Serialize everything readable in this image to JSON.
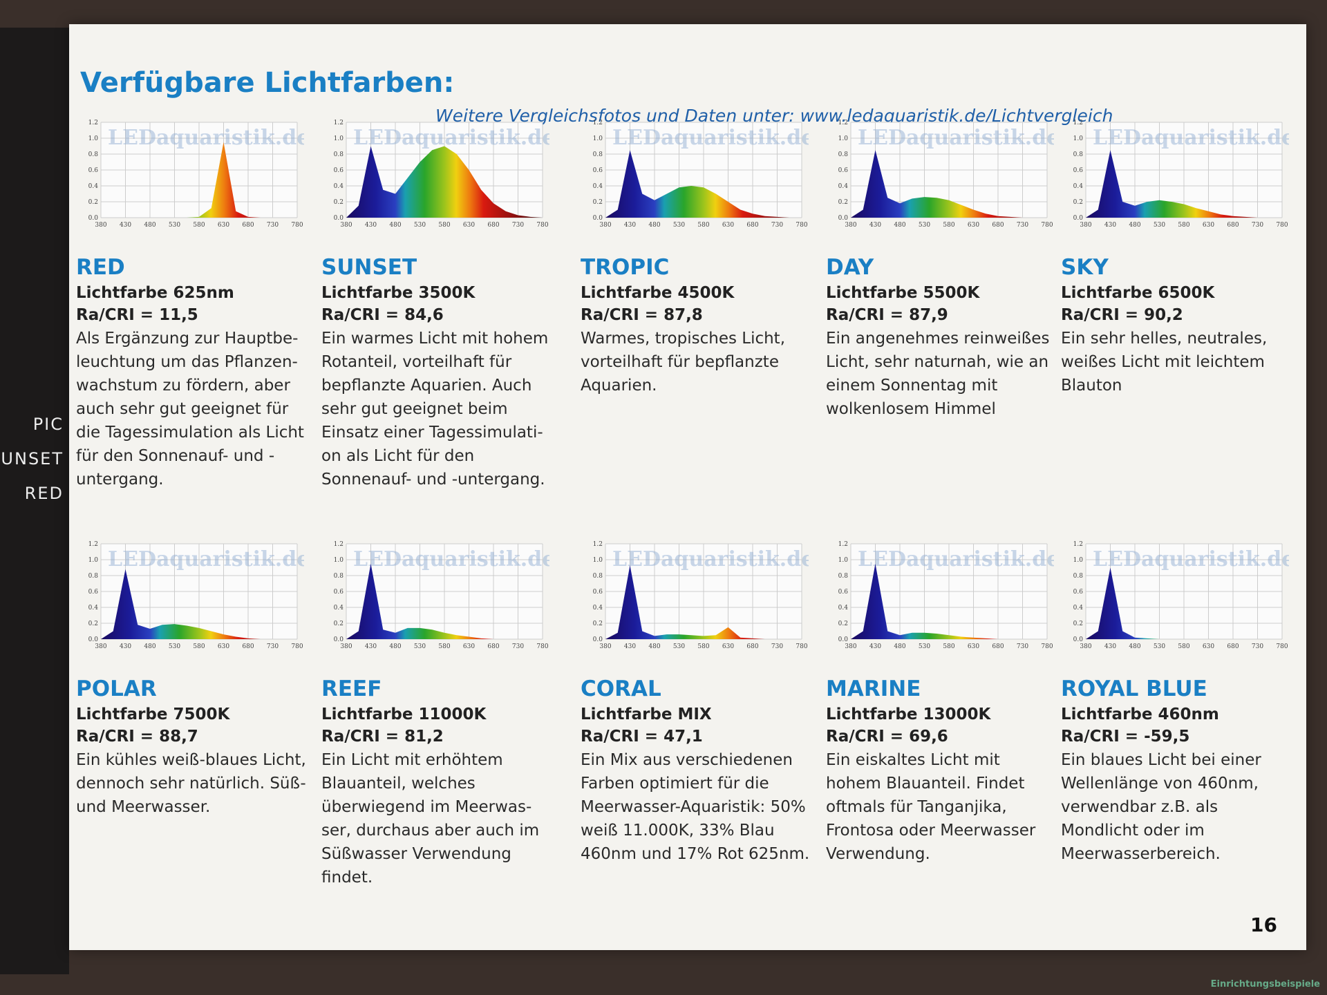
{
  "header": {
    "title": "Verfügbare Lichtfarben:",
    "subtitle": "Weitere Vergleichsfotos und Daten unter: www.ledaquaristik.de/Lichtvergleich"
  },
  "side_tabs": [
    "PIC",
    "UNSET",
    "RED"
  ],
  "page_number": "16",
  "footer_watermark": "Einrichtungsbeispiele",
  "spectrum_axes": {
    "watermark": "LEDaquaristik.de",
    "xlim": [
      380,
      780
    ],
    "ylim": [
      0,
      1.2
    ],
    "xticks": [
      380,
      430,
      480,
      530,
      580,
      630,
      680,
      730,
      780
    ],
    "yticks": [
      {
        "value": 0,
        "label": "0.0"
      },
      0.2,
      0.4,
      0.6,
      0.8,
      {
        "value": 1,
        "label": "1.0"
      },
      1.2
    ],
    "x": [
      380,
      405,
      430,
      455,
      480,
      505,
      530,
      555,
      580,
      605,
      630,
      655,
      680,
      705,
      730,
      755,
      780
    ]
  },
  "cards": [
    {
      "name": "RED",
      "color_temp": "Lichtfarbe 625nm",
      "cri": "Ra/CRI = 11,5",
      "description": [
        "Als Ergänzung zur Hauptbe-",
        "leuchtung um das Pflanzen-",
        "wachstum zu fördern, aber",
        "auch sehr gut geeignet für",
        "die Tagessimulation als Licht",
        "für den Sonnenauf- und -",
        "untergang."
      ],
      "spectrum": [
        0,
        0,
        0,
        0,
        0,
        0,
        0,
        0,
        0.01,
        0.12,
        0.95,
        0.08,
        0.01,
        0,
        0,
        0,
        0
      ]
    },
    {
      "name": "SUNSET",
      "color_temp": "Lichtfarbe 3500K",
      "cri": "Ra/CRI = 84,6",
      "description": [
        "Ein warmes Licht mit hohem",
        "Rotanteil, vorteilhaft für",
        "bepflanzte Aquarien. Auch",
        "sehr gut geeignet beim",
        "Einsatz einer Tagessimulati-",
        "on als Licht für den",
        "Sonnenauf- und -untergang."
      ],
      "spectrum": [
        0,
        0.15,
        0.9,
        0.35,
        0.3,
        0.5,
        0.7,
        0.85,
        0.9,
        0.8,
        0.6,
        0.35,
        0.18,
        0.08,
        0.03,
        0.01,
        0
      ]
    },
    {
      "name": "TROPIC",
      "color_temp": "Lichtfarbe 4500K",
      "cri": "Ra/CRI = 87,8",
      "description": [
        "Warmes, tropisches Licht,",
        "vorteilhaft für bepflanzte",
        "Aquarien."
      ],
      "spectrum": [
        0,
        0.1,
        0.85,
        0.3,
        0.22,
        0.3,
        0.38,
        0.4,
        0.38,
        0.3,
        0.2,
        0.1,
        0.05,
        0.02,
        0.01,
        0,
        0
      ]
    },
    {
      "name": "DAY",
      "color_temp": "Lichtfarbe 5500K",
      "cri": "Ra/CRI = 87,9",
      "description": [
        "Ein angenehmes reinweißes",
        "Licht, sehr naturnah, wie an",
        "einem Sonnentag mit",
        "wolkenlosem Himmel"
      ],
      "spectrum": [
        0,
        0.1,
        0.85,
        0.25,
        0.18,
        0.24,
        0.26,
        0.25,
        0.22,
        0.16,
        0.1,
        0.05,
        0.02,
        0.01,
        0,
        0,
        0
      ]
    },
    {
      "name": "SKY",
      "color_temp": "Lichtfarbe 6500K",
      "cri": "Ra/CRI = 90,2",
      "description": [
        "Ein sehr helles, neutrales,",
        "weißes Licht mit leichtem",
        "Blauton"
      ],
      "spectrum": [
        0,
        0.1,
        0.85,
        0.2,
        0.15,
        0.2,
        0.22,
        0.2,
        0.17,
        0.12,
        0.08,
        0.04,
        0.02,
        0.01,
        0,
        0,
        0
      ]
    },
    {
      "name": "POLAR",
      "color_temp": "Lichtfarbe 7500K",
      "cri": "Ra/CRI = 88,7",
      "description": [
        "Ein kühles weiß-blaues Licht,",
        "dennoch sehr natürlich. Süß-",
        "und Meerwasser."
      ],
      "spectrum": [
        0,
        0.1,
        0.88,
        0.18,
        0.13,
        0.18,
        0.19,
        0.17,
        0.14,
        0.1,
        0.06,
        0.03,
        0.01,
        0,
        0,
        0,
        0
      ]
    },
    {
      "name": "REEF",
      "color_temp": "Lichtfarbe 11000K",
      "cri": "Ra/CRI = 81,2",
      "description": [
        "Ein Licht mit erhöhtem",
        "Blauanteil, welches",
        "überwiegend im Meerwas-",
        "ser, durchaus aber auch im",
        "Süßwasser Verwendung",
        "findet."
      ],
      "spectrum": [
        0,
        0.1,
        0.95,
        0.12,
        0.08,
        0.14,
        0.14,
        0.12,
        0.08,
        0.05,
        0.03,
        0.01,
        0,
        0,
        0,
        0,
        0
      ]
    },
    {
      "name": "CORAL",
      "color_temp": "Lichtfarbe MIX",
      "cri": "Ra/CRI = 47,1",
      "description": [
        "Ein Mix aus verschiedenen",
        "Farben optimiert für die",
        "Meerwasser-Aquaristik: 50%",
        "weiß 11.000K, 33% Blau",
        "460nm und 17% Rot 625nm."
      ],
      "spectrum": [
        0,
        0.08,
        0.93,
        0.1,
        0.04,
        0.06,
        0.06,
        0.05,
        0.04,
        0.05,
        0.15,
        0.02,
        0.01,
        0,
        0,
        0,
        0
      ]
    },
    {
      "name": "MARINE",
      "color_temp": "Lichtfarbe 13000K",
      "cri": "Ra/CRI = 69,6",
      "description": [
        "Ein eiskaltes Licht mit",
        "hohem Blauanteil. Findet",
        "oftmals für Tanganjika,",
        "Frontosa oder Meerwasser",
        "Verwendung."
      ],
      "spectrum": [
        0,
        0.1,
        0.95,
        0.1,
        0.05,
        0.08,
        0.08,
        0.07,
        0.05,
        0.03,
        0.02,
        0.01,
        0,
        0,
        0,
        0,
        0
      ]
    },
    {
      "name": "ROYAL BLUE",
      "color_temp": "Lichtfarbe 460nm",
      "cri": "Ra/CRI = -59,5",
      "description": [
        "Ein blaues Licht bei einer",
        "Wellenlänge von 460nm,",
        "verwendbar z.B. als",
        "Mondlicht oder im",
        "Meerwasserbereich."
      ],
      "spectrum": [
        0,
        0.1,
        0.9,
        0.1,
        0.02,
        0.01,
        0,
        0,
        0,
        0,
        0,
        0,
        0,
        0,
        0,
        0,
        0
      ]
    }
  ]
}
